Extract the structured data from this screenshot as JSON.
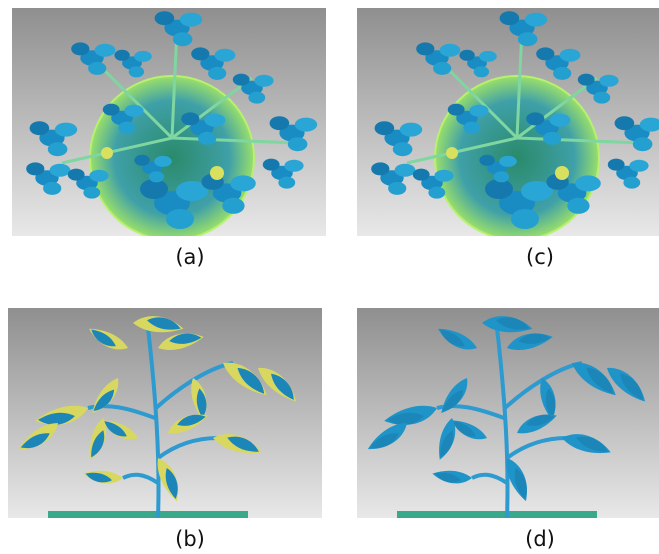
{
  "panels": [
    {
      "label": "(a)"
    },
    {
      "label": "(c)"
    },
    {
      "label": "(b)"
    },
    {
      "label": "(d)"
    }
  ]
}
